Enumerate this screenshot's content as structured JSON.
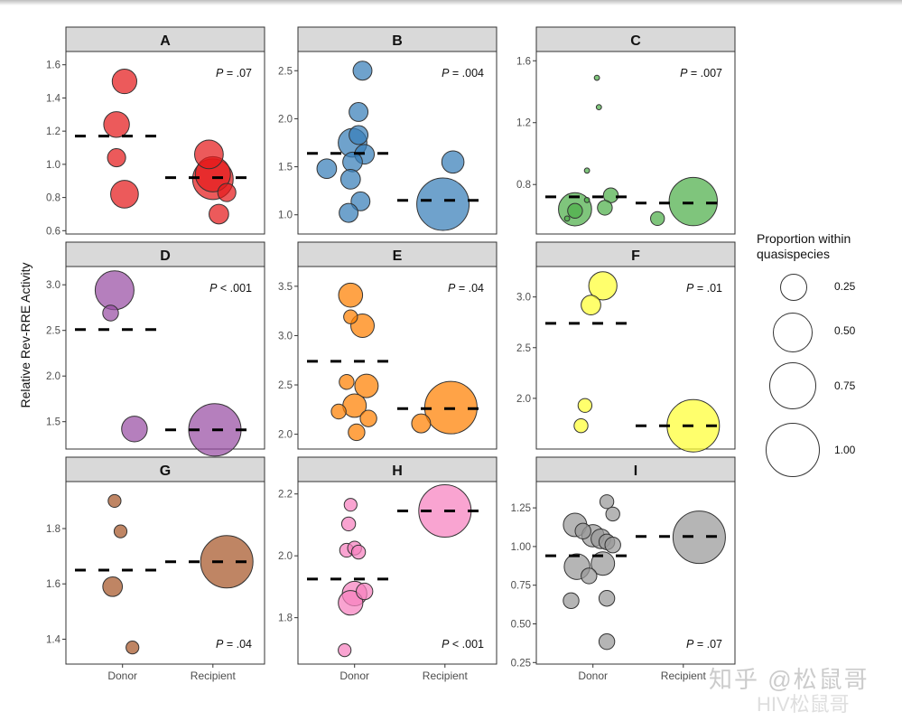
{
  "figure": {
    "y_axis_label": "Relative Rev-RRE Activity",
    "x_categories": [
      "Donor",
      "Recipient"
    ],
    "legend": {
      "title_line1": "Proportion within",
      "title_line2": "quasispecies",
      "items": [
        {
          "label": "0.25",
          "size": 0.25
        },
        {
          "label": "0.50",
          "size": 0.5
        },
        {
          "label": "0.75",
          "size": 0.75
        },
        {
          "label": "1.00",
          "size": 1.0
        }
      ]
    },
    "watermark": {
      "line1": "知乎 @松鼠哥",
      "line2": "HIV松鼠哥"
    }
  },
  "chart_data": [
    {
      "type": "scatter",
      "panel": "A",
      "color": "#E41A1C",
      "title": "A",
      "xlabel": "",
      "ylabel": "Relative Rev-RRE Activity",
      "categories": [
        "Donor",
        "Recipient"
      ],
      "ylim": [
        0.58,
        1.68
      ],
      "yticks": [
        0.6,
        0.8,
        1.0,
        1.2,
        1.4,
        1.6
      ],
      "ytick_labels": [
        "0.6",
        "0.8",
        "1.0",
        "1.2",
        "1.4",
        "1.6"
      ],
      "pvalue": "P = .07",
      "pvalue_pos": "top",
      "means": {
        "Donor": 1.17,
        "Recipient": 0.92
      },
      "points": [
        {
          "group": "Donor",
          "dx": 0.01,
          "y": 1.5,
          "size": 0.22
        },
        {
          "group": "Donor",
          "dx": -0.03,
          "y": 1.24,
          "size": 0.24
        },
        {
          "group": "Donor",
          "dx": -0.03,
          "y": 1.04,
          "size": 0.12
        },
        {
          "group": "Donor",
          "dx": 0.01,
          "y": 0.82,
          "size": 0.28
        },
        {
          "group": "Recipient",
          "dx": -0.02,
          "y": 1.06,
          "size": 0.3
        },
        {
          "group": "Recipient",
          "dx": 0.0,
          "y": 0.94,
          "size": 0.45
        },
        {
          "group": "Recipient",
          "dx": 0.0,
          "y": 0.91,
          "size": 0.6
        },
        {
          "group": "Recipient",
          "dx": 0.07,
          "y": 0.83,
          "size": 0.12
        },
        {
          "group": "Recipient",
          "dx": 0.03,
          "y": 0.7,
          "size": 0.14
        }
      ]
    },
    {
      "type": "scatter",
      "panel": "B",
      "color": "#377EB8",
      "title": "B",
      "categories": [
        "Donor",
        "Recipient"
      ],
      "ylim": [
        0.8,
        2.7
      ],
      "yticks": [
        1.0,
        1.5,
        2.0,
        2.5
      ],
      "ytick_labels": [
        "1.0",
        "1.5",
        "2.0",
        "2.5"
      ],
      "pvalue": "P = .004",
      "pvalue_pos": "top",
      "means": {
        "Donor": 1.64,
        "Recipient": 1.15
      },
      "points": [
        {
          "group": "Donor",
          "dx": 0.04,
          "y": 2.5,
          "size": 0.13
        },
        {
          "group": "Donor",
          "dx": 0.02,
          "y": 2.07,
          "size": 0.13
        },
        {
          "group": "Donor",
          "dx": 0.02,
          "y": 1.83,
          "size": 0.13
        },
        {
          "group": "Donor",
          "dx": -0.01,
          "y": 1.75,
          "size": 0.3
        },
        {
          "group": "Donor",
          "dx": 0.05,
          "y": 1.63,
          "size": 0.14
        },
        {
          "group": "Donor",
          "dx": -0.01,
          "y": 1.55,
          "size": 0.14
        },
        {
          "group": "Donor",
          "dx": -0.14,
          "y": 1.48,
          "size": 0.14
        },
        {
          "group": "Donor",
          "dx": -0.02,
          "y": 1.37,
          "size": 0.14
        },
        {
          "group": "Donor",
          "dx": 0.03,
          "y": 1.14,
          "size": 0.13
        },
        {
          "group": "Donor",
          "dx": -0.03,
          "y": 1.02,
          "size": 0.13
        },
        {
          "group": "Recipient",
          "dx": 0.04,
          "y": 1.55,
          "size": 0.18
        },
        {
          "group": "Recipient",
          "dx": -0.01,
          "y": 1.11,
          "size": 1.0
        }
      ]
    },
    {
      "type": "scatter",
      "panel": "C",
      "color": "#4DAF4A",
      "title": "C",
      "categories": [
        "Donor",
        "Recipient"
      ],
      "ylim": [
        0.48,
        1.66
      ],
      "yticks": [
        0.8,
        1.2,
        1.6
      ],
      "ytick_labels": [
        "0.8",
        "1.2",
        "1.6"
      ],
      "pvalue": "P = .007",
      "pvalue_pos": "top",
      "means": {
        "Donor": 0.72,
        "Recipient": 0.68
      },
      "points": [
        {
          "group": "Donor",
          "dx": 0.02,
          "y": 1.49,
          "size": 0.01
        },
        {
          "group": "Donor",
          "dx": 0.03,
          "y": 1.3,
          "size": 0.01
        },
        {
          "group": "Donor",
          "dx": -0.03,
          "y": 0.89,
          "size": 0.01
        },
        {
          "group": "Donor",
          "dx": 0.09,
          "y": 0.73,
          "size": 0.08
        },
        {
          "group": "Donor",
          "dx": -0.03,
          "y": 0.7,
          "size": 0.01
        },
        {
          "group": "Donor",
          "dx": -0.09,
          "y": 0.64,
          "size": 0.4
        },
        {
          "group": "Donor",
          "dx": 0.06,
          "y": 0.65,
          "size": 0.08
        },
        {
          "group": "Donor",
          "dx": -0.09,
          "y": 0.63,
          "size": 0.08
        },
        {
          "group": "Donor",
          "dx": -0.13,
          "y": 0.58,
          "size": 0.01
        },
        {
          "group": "Recipient",
          "dx": 0.05,
          "y": 0.69,
          "size": 0.85
        },
        {
          "group": "Recipient",
          "dx": -0.13,
          "y": 0.58,
          "size": 0.07
        }
      ]
    },
    {
      "type": "scatter",
      "panel": "D",
      "color": "#984EA3",
      "title": "D",
      "categories": [
        "Donor",
        "Recipient"
      ],
      "ylim": [
        1.2,
        3.2
      ],
      "yticks": [
        1.5,
        2.0,
        2.5,
        3.0
      ],
      "ytick_labels": [
        "1.5",
        "2.0",
        "2.5",
        "3.0"
      ],
      "pvalue": "P < .001",
      "pvalue_pos": "top",
      "means": {
        "Donor": 2.51,
        "Recipient": 1.41
      },
      "points": [
        {
          "group": "Donor",
          "dx": -0.04,
          "y": 2.94,
          "size": 0.55
        },
        {
          "group": "Donor",
          "dx": -0.06,
          "y": 2.69,
          "size": 0.09
        },
        {
          "group": "Donor",
          "dx": 0.06,
          "y": 1.42,
          "size": 0.24
        },
        {
          "group": "Recipient",
          "dx": 0.01,
          "y": 1.41,
          "size": 1.0
        }
      ]
    },
    {
      "type": "scatter",
      "panel": "E",
      "color": "#FF7F00",
      "title": "E",
      "categories": [
        "Donor",
        "Recipient"
      ],
      "ylim": [
        1.85,
        3.7
      ],
      "yticks": [
        2.0,
        2.5,
        3.0,
        3.5
      ],
      "ytick_labels": [
        "2.0",
        "2.5",
        "3.0",
        "3.5"
      ],
      "pvalue": "P = .04",
      "pvalue_pos": "top",
      "means": {
        "Donor": 2.74,
        "Recipient": 2.26
      },
      "points": [
        {
          "group": "Donor",
          "dx": -0.02,
          "y": 3.41,
          "size": 0.21
        },
        {
          "group": "Donor",
          "dx": -0.02,
          "y": 3.19,
          "size": 0.07
        },
        {
          "group": "Donor",
          "dx": 0.04,
          "y": 3.1,
          "size": 0.2
        },
        {
          "group": "Donor",
          "dx": -0.04,
          "y": 2.53,
          "size": 0.08
        },
        {
          "group": "Donor",
          "dx": 0.06,
          "y": 2.49,
          "size": 0.2
        },
        {
          "group": "Donor",
          "dx": 0.0,
          "y": 2.29,
          "size": 0.2
        },
        {
          "group": "Donor",
          "dx": -0.08,
          "y": 2.23,
          "size": 0.08
        },
        {
          "group": "Donor",
          "dx": 0.07,
          "y": 2.16,
          "size": 0.1
        },
        {
          "group": "Donor",
          "dx": 0.01,
          "y": 2.02,
          "size": 0.1
        },
        {
          "group": "Recipient",
          "dx": 0.03,
          "y": 2.27,
          "size": 1.0
        },
        {
          "group": "Recipient",
          "dx": -0.12,
          "y": 2.11,
          "size": 0.13
        }
      ]
    },
    {
      "type": "scatter",
      "panel": "F",
      "color": "#FFFF33",
      "title": "F",
      "categories": [
        "Donor",
        "Recipient"
      ],
      "ylim": [
        1.5,
        3.3
      ],
      "yticks": [
        2.0,
        2.5,
        3.0
      ],
      "ytick_labels": [
        "2.0",
        "2.5",
        "3.0"
      ],
      "pvalue": "P = .01",
      "pvalue_pos": "top",
      "means": {
        "Donor": 2.74,
        "Recipient": 1.73
      },
      "points": [
        {
          "group": "Donor",
          "dx": 0.05,
          "y": 3.11,
          "size": 0.29
        },
        {
          "group": "Donor",
          "dx": -0.01,
          "y": 2.92,
          "size": 0.14
        },
        {
          "group": "Donor",
          "dx": -0.04,
          "y": 1.93,
          "size": 0.07
        },
        {
          "group": "Donor",
          "dx": -0.06,
          "y": 1.73,
          "size": 0.07
        },
        {
          "group": "Recipient",
          "dx": 0.05,
          "y": 1.73,
          "size": 1.0
        }
      ]
    },
    {
      "type": "scatter",
      "panel": "G",
      "color": "#A65628",
      "title": "G",
      "categories": [
        "Donor",
        "Recipient"
      ],
      "xlabel_ticks": [
        "Donor",
        "Recipient"
      ],
      "ylim": [
        1.31,
        1.97
      ],
      "yticks": [
        1.4,
        1.6,
        1.8
      ],
      "ytick_labels": [
        "1.4",
        "1.6",
        "1.8"
      ],
      "pvalue": "P = .04",
      "pvalue_pos": "bottom",
      "means": {
        "Donor": 1.65,
        "Recipient": 1.68
      },
      "points": [
        {
          "group": "Donor",
          "dx": -0.04,
          "y": 1.9,
          "size": 0.06
        },
        {
          "group": "Donor",
          "dx": -0.01,
          "y": 1.79,
          "size": 0.06
        },
        {
          "group": "Donor",
          "dx": -0.05,
          "y": 1.59,
          "size": 0.14
        },
        {
          "group": "Donor",
          "dx": 0.05,
          "y": 1.37,
          "size": 0.06
        },
        {
          "group": "Recipient",
          "dx": 0.07,
          "y": 1.68,
          "size": 1.0
        }
      ]
    },
    {
      "type": "scatter",
      "panel": "H",
      "color": "#F781BF",
      "title": "H",
      "categories": [
        "Donor",
        "Recipient"
      ],
      "xlabel_ticks": [
        "Donor",
        "Recipient"
      ],
      "ylim": [
        1.65,
        2.24
      ],
      "yticks": [
        1.8,
        2.0,
        2.2
      ],
      "ytick_labels": [
        "1.8",
        "2.0",
        "2.2"
      ],
      "pvalue": "P < .001",
      "pvalue_pos": "bottom",
      "means": {
        "Donor": 1.925,
        "Recipient": 2.145
      },
      "points": [
        {
          "group": "Donor",
          "dx": -0.02,
          "y": 2.165,
          "size": 0.06
        },
        {
          "group": "Donor",
          "dx": -0.03,
          "y": 2.103,
          "size": 0.07
        },
        {
          "group": "Donor",
          "dx": -0.04,
          "y": 2.018,
          "size": 0.07
        },
        {
          "group": "Donor",
          "dx": 0.0,
          "y": 2.025,
          "size": 0.07
        },
        {
          "group": "Donor",
          "dx": 0.02,
          "y": 2.012,
          "size": 0.07
        },
        {
          "group": "Donor",
          "dx": 0.0,
          "y": 1.878,
          "size": 0.22
        },
        {
          "group": "Donor",
          "dx": 0.05,
          "y": 1.885,
          "size": 0.1
        },
        {
          "group": "Donor",
          "dx": -0.02,
          "y": 1.848,
          "size": 0.22
        },
        {
          "group": "Donor",
          "dx": -0.05,
          "y": 1.695,
          "size": 0.06
        },
        {
          "group": "Recipient",
          "dx": 0.0,
          "y": 2.145,
          "size": 1.0
        }
      ]
    },
    {
      "type": "scatter",
      "panel": "I",
      "color": "#999999",
      "title": "I",
      "categories": [
        "Donor",
        "Recipient"
      ],
      "xlabel_ticks": [
        "Donor",
        "Recipient"
      ],
      "ylim": [
        0.24,
        1.42
      ],
      "yticks": [
        0.25,
        0.5,
        0.75,
        1.0,
        1.25
      ],
      "ytick_labels": [
        "0.25",
        "0.50",
        "0.75",
        "1.00",
        "1.25"
      ],
      "pvalue": "P = .07",
      "pvalue_pos": "bottom",
      "means": {
        "Donor": 0.94,
        "Recipient": 1.065
      },
      "points": [
        {
          "group": "Donor",
          "dx": 0.07,
          "y": 1.29,
          "size": 0.07
        },
        {
          "group": "Donor",
          "dx": 0.1,
          "y": 1.21,
          "size": 0.07
        },
        {
          "group": "Donor",
          "dx": -0.09,
          "y": 1.14,
          "size": 0.2
        },
        {
          "group": "Donor",
          "dx": -0.05,
          "y": 1.1,
          "size": 0.09
        },
        {
          "group": "Donor",
          "dx": 0.0,
          "y": 1.07,
          "size": 0.18
        },
        {
          "group": "Donor",
          "dx": 0.04,
          "y": 1.05,
          "size": 0.14
        },
        {
          "group": "Donor",
          "dx": 0.07,
          "y": 1.03,
          "size": 0.09
        },
        {
          "group": "Donor",
          "dx": 0.1,
          "y": 1.01,
          "size": 0.09
        },
        {
          "group": "Donor",
          "dx": -0.08,
          "y": 0.87,
          "size": 0.24
        },
        {
          "group": "Donor",
          "dx": 0.05,
          "y": 0.89,
          "size": 0.2
        },
        {
          "group": "Donor",
          "dx": -0.02,
          "y": 0.81,
          "size": 0.09
        },
        {
          "group": "Donor",
          "dx": -0.11,
          "y": 0.65,
          "size": 0.09
        },
        {
          "group": "Donor",
          "dx": 0.07,
          "y": 0.665,
          "size": 0.09
        },
        {
          "group": "Donor",
          "dx": 0.07,
          "y": 0.385,
          "size": 0.09
        },
        {
          "group": "Recipient",
          "dx": 0.08,
          "y": 1.06,
          "size": 1.0
        }
      ]
    }
  ]
}
